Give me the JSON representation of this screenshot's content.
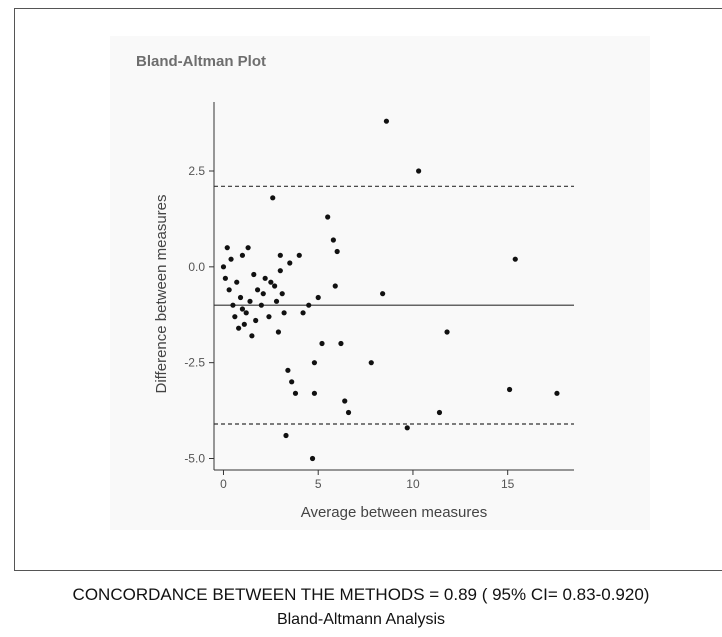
{
  "chart_data": {
    "type": "scatter",
    "title": "Bland-Altman Plot",
    "xlabel": "Average between measures",
    "ylabel": "Difference between measures",
    "xlim": [
      -0.5,
      18.5
    ],
    "ylim": [
      -5.3,
      4.3
    ],
    "xticks": [
      0,
      5,
      10,
      15
    ],
    "yticks": [
      2.5,
      0.0,
      -2.5,
      -5.0
    ],
    "xtick_labels": [
      "0",
      "5",
      "10",
      "15"
    ],
    "ytick_labels": [
      "2.5",
      "0.0",
      "-2.5",
      "-5.0"
    ],
    "mean_difference": -1.0,
    "upper_limit": 2.1,
    "lower_limit": -4.1,
    "points": [
      [
        0.0,
        0.0
      ],
      [
        0.1,
        -0.3
      ],
      [
        0.2,
        0.5
      ],
      [
        0.3,
        -0.6
      ],
      [
        0.4,
        0.2
      ],
      [
        0.5,
        -1.0
      ],
      [
        0.6,
        -1.3
      ],
      [
        0.7,
        -0.4
      ],
      [
        0.8,
        -1.6
      ],
      [
        0.9,
        -0.8
      ],
      [
        1.0,
        0.3
      ],
      [
        1.0,
        -1.1
      ],
      [
        1.1,
        -1.5
      ],
      [
        1.2,
        -1.2
      ],
      [
        1.3,
        0.5
      ],
      [
        1.4,
        -0.9
      ],
      [
        1.5,
        -1.8
      ],
      [
        1.6,
        -0.2
      ],
      [
        1.7,
        -1.4
      ],
      [
        1.8,
        -0.6
      ],
      [
        2.0,
        -1.0
      ],
      [
        2.1,
        -0.7
      ],
      [
        2.2,
        -0.3
      ],
      [
        2.4,
        -1.3
      ],
      [
        2.5,
        -0.4
      ],
      [
        2.6,
        1.8
      ],
      [
        2.7,
        -0.5
      ],
      [
        2.8,
        -0.9
      ],
      [
        2.9,
        -1.7
      ],
      [
        3.0,
        0.3
      ],
      [
        3.0,
        -0.1
      ],
      [
        3.1,
        -0.7
      ],
      [
        3.2,
        -1.2
      ],
      [
        3.3,
        -4.4
      ],
      [
        3.4,
        -2.7
      ],
      [
        3.5,
        0.1
      ],
      [
        3.6,
        -3.0
      ],
      [
        3.8,
        -3.3
      ],
      [
        4.0,
        0.3
      ],
      [
        4.2,
        -1.2
      ],
      [
        4.5,
        -1.0
      ],
      [
        4.7,
        -5.0
      ],
      [
        4.8,
        -3.3
      ],
      [
        4.8,
        -2.5
      ],
      [
        5.0,
        -0.8
      ],
      [
        5.2,
        -2.0
      ],
      [
        5.5,
        1.3
      ],
      [
        5.8,
        0.7
      ],
      [
        5.9,
        -0.5
      ],
      [
        6.0,
        0.4
      ],
      [
        6.2,
        -2.0
      ],
      [
        6.4,
        -3.5
      ],
      [
        6.6,
        -3.8
      ],
      [
        7.8,
        -2.5
      ],
      [
        8.4,
        -0.7
      ],
      [
        8.6,
        3.8
      ],
      [
        9.7,
        -4.2
      ],
      [
        10.3,
        2.5
      ],
      [
        11.4,
        -3.8
      ],
      [
        11.8,
        -1.7
      ],
      [
        15.1,
        -3.2
      ],
      [
        15.4,
        0.2
      ],
      [
        17.6,
        -3.3
      ]
    ]
  },
  "caption": {
    "line1": "CONCORDANCE BETWEEN THE METHODS = 0.89 ( 95% CI= 0.83-0.920)",
    "line2": "Bland-Altmann Analysis"
  }
}
